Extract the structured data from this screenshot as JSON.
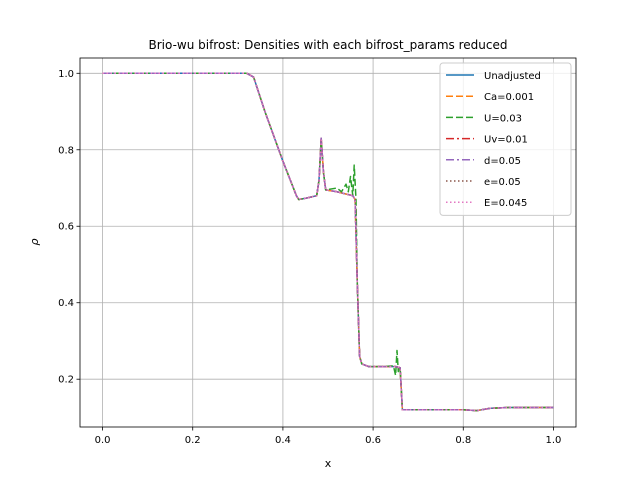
{
  "chart_data": {
    "type": "line",
    "title": "Brio-wu bifrost: Densities with each bifrost_params reduced",
    "xlabel": "x",
    "ylabel": "ρ",
    "xlim": [
      -0.05,
      1.05
    ],
    "ylim": [
      0.075,
      1.04
    ],
    "xticks": [
      0.0,
      0.2,
      0.4,
      0.6,
      0.8,
      1.0
    ],
    "xtick_labels": [
      "0.0",
      "0.2",
      "0.4",
      "0.6",
      "0.8",
      "1.0"
    ],
    "yticks": [
      0.2,
      0.4,
      0.6,
      0.8,
      1.0
    ],
    "ytick_labels": [
      "0.2",
      "0.4",
      "0.6",
      "0.8",
      "1.0"
    ],
    "grid": true,
    "legend_position": "top-right",
    "series": [
      {
        "name": "Unadjusted",
        "color": "#1f77b4",
        "dash": "solid",
        "x": [
          0.0,
          0.32,
          0.335,
          0.36,
          0.4,
          0.43,
          0.435,
          0.45,
          0.475,
          0.48,
          0.485,
          0.49,
          0.495,
          0.52,
          0.555,
          0.56,
          0.565,
          0.57,
          0.575,
          0.59,
          0.62,
          0.65,
          0.66,
          0.665,
          0.7,
          0.8,
          0.83,
          0.86,
          0.9,
          1.0
        ],
        "y": [
          1.0,
          1.0,
          0.99,
          0.9,
          0.77,
          0.68,
          0.67,
          0.673,
          0.68,
          0.72,
          0.83,
          0.74,
          0.695,
          0.69,
          0.68,
          0.67,
          0.45,
          0.26,
          0.24,
          0.233,
          0.233,
          0.233,
          0.23,
          0.12,
          0.12,
          0.12,
          0.118,
          0.124,
          0.126,
          0.126
        ]
      },
      {
        "name": "Ca=0.001",
        "color": "#ff7f0e",
        "dash": "7,3",
        "x": [
          0.0,
          0.32,
          0.335,
          0.36,
          0.4,
          0.43,
          0.435,
          0.45,
          0.475,
          0.48,
          0.485,
          0.49,
          0.495,
          0.52,
          0.555,
          0.56,
          0.565,
          0.57,
          0.575,
          0.59,
          0.62,
          0.65,
          0.66,
          0.665,
          0.7,
          0.8,
          0.83,
          0.86,
          0.9,
          1.0
        ],
        "y": [
          1.0,
          1.0,
          0.99,
          0.9,
          0.77,
          0.68,
          0.67,
          0.673,
          0.68,
          0.72,
          0.83,
          0.74,
          0.695,
          0.69,
          0.68,
          0.67,
          0.45,
          0.26,
          0.24,
          0.233,
          0.233,
          0.233,
          0.23,
          0.12,
          0.12,
          0.12,
          0.118,
          0.124,
          0.126,
          0.126
        ]
      },
      {
        "name": "U=0.03",
        "color": "#2ca02c",
        "dash": "7,3",
        "x": [
          0.0,
          0.32,
          0.335,
          0.36,
          0.4,
          0.43,
          0.435,
          0.45,
          0.475,
          0.48,
          0.485,
          0.49,
          0.495,
          0.52,
          0.53,
          0.54,
          0.545,
          0.55,
          0.555,
          0.558,
          0.562,
          0.565,
          0.57,
          0.575,
          0.59,
          0.62,
          0.645,
          0.65,
          0.653,
          0.656,
          0.66,
          0.665,
          0.7,
          0.8,
          0.83,
          0.86,
          0.9,
          1.0
        ],
        "y": [
          1.0,
          1.0,
          0.99,
          0.9,
          0.77,
          0.68,
          0.67,
          0.673,
          0.68,
          0.72,
          0.825,
          0.74,
          0.695,
          0.7,
          0.69,
          0.71,
          0.69,
          0.73,
          0.68,
          0.76,
          0.67,
          0.45,
          0.26,
          0.24,
          0.233,
          0.233,
          0.235,
          0.21,
          0.275,
          0.22,
          0.23,
          0.12,
          0.12,
          0.12,
          0.118,
          0.124,
          0.126,
          0.126
        ]
      },
      {
        "name": "Uv=0.01",
        "color": "#d62728",
        "dash": "8,3,2,3",
        "x": [
          0.0,
          0.32,
          0.335,
          0.36,
          0.4,
          0.43,
          0.435,
          0.45,
          0.475,
          0.48,
          0.485,
          0.49,
          0.495,
          0.52,
          0.555,
          0.56,
          0.565,
          0.57,
          0.575,
          0.59,
          0.62,
          0.65,
          0.66,
          0.665,
          0.7,
          0.8,
          0.83,
          0.86,
          0.9,
          1.0
        ],
        "y": [
          1.0,
          1.0,
          0.99,
          0.9,
          0.77,
          0.68,
          0.67,
          0.673,
          0.68,
          0.72,
          0.83,
          0.74,
          0.695,
          0.69,
          0.68,
          0.67,
          0.45,
          0.26,
          0.24,
          0.233,
          0.233,
          0.233,
          0.23,
          0.12,
          0.12,
          0.12,
          0.118,
          0.124,
          0.126,
          0.126
        ]
      },
      {
        "name": "d=0.05",
        "color": "#9467bd",
        "dash": "8,3,2,3",
        "x": [
          0.0,
          0.32,
          0.335,
          0.36,
          0.4,
          0.43,
          0.435,
          0.45,
          0.475,
          0.48,
          0.485,
          0.49,
          0.495,
          0.52,
          0.555,
          0.56,
          0.565,
          0.57,
          0.575,
          0.59,
          0.62,
          0.65,
          0.66,
          0.665,
          0.7,
          0.8,
          0.83,
          0.86,
          0.9,
          1.0
        ],
        "y": [
          1.0,
          1.0,
          0.99,
          0.9,
          0.77,
          0.68,
          0.67,
          0.673,
          0.68,
          0.72,
          0.83,
          0.74,
          0.695,
          0.69,
          0.68,
          0.67,
          0.45,
          0.26,
          0.24,
          0.233,
          0.233,
          0.233,
          0.23,
          0.12,
          0.12,
          0.12,
          0.118,
          0.124,
          0.126,
          0.126
        ]
      },
      {
        "name": "e=0.05",
        "color": "#8c564b",
        "dash": "1.5,2.5",
        "x": [
          0.0,
          0.32,
          0.335,
          0.36,
          0.4,
          0.43,
          0.435,
          0.45,
          0.475,
          0.48,
          0.485,
          0.49,
          0.495,
          0.52,
          0.555,
          0.56,
          0.565,
          0.57,
          0.575,
          0.59,
          0.62,
          0.65,
          0.66,
          0.665,
          0.7,
          0.8,
          0.83,
          0.86,
          0.9,
          1.0
        ],
        "y": [
          1.0,
          1.0,
          0.99,
          0.9,
          0.77,
          0.68,
          0.67,
          0.673,
          0.68,
          0.72,
          0.83,
          0.74,
          0.695,
          0.69,
          0.68,
          0.67,
          0.45,
          0.26,
          0.24,
          0.233,
          0.233,
          0.233,
          0.23,
          0.12,
          0.12,
          0.12,
          0.118,
          0.124,
          0.126,
          0.126
        ]
      },
      {
        "name": "E=0.045",
        "color": "#e377c2",
        "dash": "1.5,2.5",
        "x": [
          0.0,
          0.32,
          0.335,
          0.36,
          0.4,
          0.43,
          0.435,
          0.45,
          0.475,
          0.48,
          0.485,
          0.49,
          0.495,
          0.52,
          0.555,
          0.56,
          0.565,
          0.57,
          0.575,
          0.59,
          0.62,
          0.65,
          0.66,
          0.665,
          0.7,
          0.8,
          0.83,
          0.86,
          0.9,
          1.0
        ],
        "y": [
          1.0,
          1.0,
          0.99,
          0.9,
          0.77,
          0.68,
          0.67,
          0.673,
          0.68,
          0.72,
          0.83,
          0.74,
          0.695,
          0.69,
          0.68,
          0.67,
          0.45,
          0.26,
          0.24,
          0.233,
          0.233,
          0.233,
          0.23,
          0.12,
          0.12,
          0.12,
          0.118,
          0.124,
          0.126,
          0.126
        ]
      }
    ]
  }
}
